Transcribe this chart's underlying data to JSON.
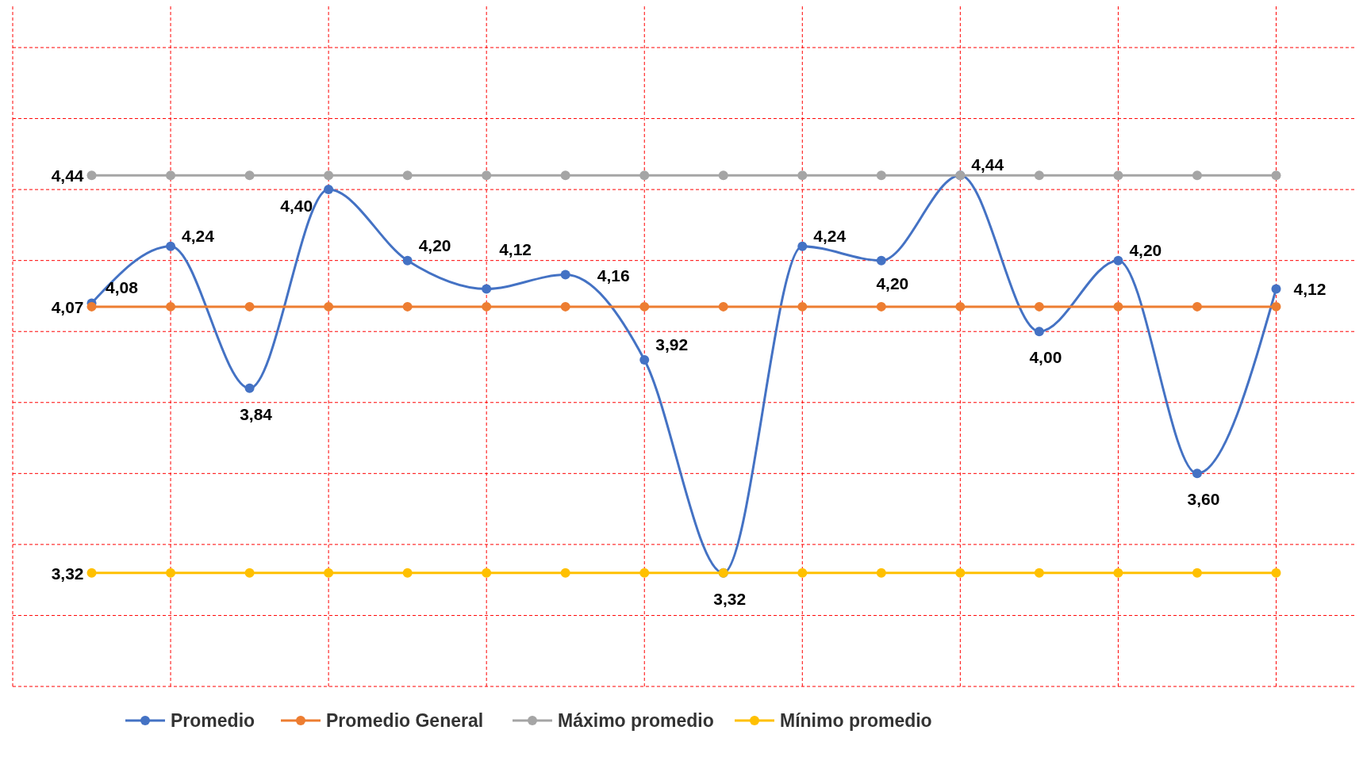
{
  "chart_data": {
    "type": "line",
    "categories": [
      null,
      null,
      null,
      null,
      null,
      null,
      null,
      null,
      null,
      null,
      null,
      null,
      null,
      null,
      null,
      null
    ],
    "series": [
      {
        "name": "Promedio",
        "color": "#4472c4",
        "values": [
          4.08,
          4.24,
          3.84,
          4.4,
          4.2,
          4.12,
          4.16,
          3.92,
          3.32,
          4.24,
          4.2,
          4.44,
          4.0,
          4.2,
          3.6,
          4.12
        ],
        "value_labels": [
          "4,08",
          "4,24",
          "3,84",
          "4,40",
          "4,20",
          "4,12",
          "4,16",
          "3,92",
          "3,32",
          "4,24",
          "4,20",
          "4,44",
          "4,00",
          "4,20",
          "3,60",
          "4,12"
        ]
      },
      {
        "name": "Promedio General",
        "color": "#ed7d31",
        "values": [
          4.07,
          4.07,
          4.07,
          4.07,
          4.07,
          4.07,
          4.07,
          4.07,
          4.07,
          4.07,
          4.07,
          4.07,
          4.07,
          4.07,
          4.07,
          4.07
        ],
        "value_labels": [
          "4,07",
          null,
          null,
          null,
          null,
          null,
          null,
          null,
          null,
          null,
          null,
          null,
          null,
          null,
          null,
          null
        ]
      },
      {
        "name": "Máximo promedio",
        "color": "#a5a5a5",
        "values": [
          4.44,
          4.44,
          4.44,
          4.44,
          4.44,
          4.44,
          4.44,
          4.44,
          4.44,
          4.44,
          4.44,
          4.44,
          4.44,
          4.44,
          4.44,
          4.44
        ],
        "value_labels": [
          "4,44",
          null,
          null,
          null,
          null,
          null,
          null,
          null,
          null,
          null,
          null,
          null,
          null,
          null,
          null,
          null
        ]
      },
      {
        "name": "Mínimo promedio",
        "color": "#ffc000",
        "values": [
          3.32,
          3.32,
          3.32,
          3.32,
          3.32,
          3.32,
          3.32,
          3.32,
          3.32,
          3.32,
          3.32,
          3.32,
          3.32,
          3.32,
          3.32,
          3.32
        ],
        "value_labels": [
          "3,32",
          null,
          null,
          null,
          null,
          null,
          null,
          null,
          null,
          null,
          null,
          null,
          null,
          null,
          null,
          null
        ]
      }
    ],
    "ylim": [
      3.0,
      4.8
    ],
    "yticks": [
      {
        "value": 3.0,
        "label": null
      },
      {
        "value": 3.2,
        "label": null
      },
      {
        "value": 3.4,
        "label": null
      },
      {
        "value": 3.6,
        "label": null
      },
      {
        "value": 3.8,
        "label": null
      },
      {
        "value": 4.0,
        "label": null
      },
      {
        "value": 4.2,
        "label": null
      },
      {
        "value": 4.4,
        "label": null
      },
      {
        "value": 4.6,
        "label": null
      },
      {
        "value": 4.8,
        "label": null
      }
    ],
    "grid": true,
    "legend": "bottom",
    "marker": "circle",
    "line_style": "solid"
  }
}
